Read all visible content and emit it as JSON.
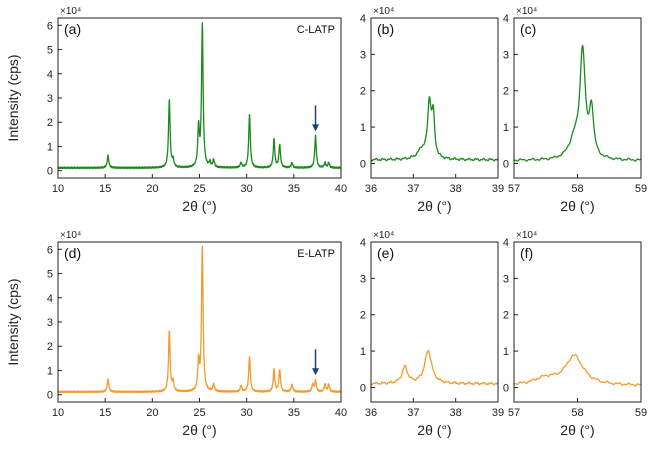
{
  "figure": {
    "ylabel": "Intensity (cps)",
    "xlabel": "2θ (°)"
  },
  "chart_data": [
    {
      "id": "a",
      "type": "line",
      "panel_label": "(a)",
      "annotation": "C-LATP",
      "color": "#1a8a1a",
      "xlim": [
        10,
        40
      ],
      "ylim": [
        -0.3,
        6.3
      ],
      "xticks": [
        10,
        15,
        20,
        25,
        30,
        35,
        40
      ],
      "yticks": [
        0,
        1,
        2,
        3,
        4,
        5,
        6
      ],
      "y_multiplier": "×10⁴",
      "xlabel": "2θ (°)",
      "ylabel": "Intensity (cps)",
      "baseline": 0.12,
      "peaks": [
        [
          15.3,
          0.5,
          0.1
        ],
        [
          21.8,
          2.8,
          0.1
        ],
        [
          22.2,
          0.3,
          0.1
        ],
        [
          24.9,
          1.6,
          0.1
        ],
        [
          25.3,
          5.85,
          0.1
        ],
        [
          26.1,
          0.2,
          0.1
        ],
        [
          26.5,
          0.3,
          0.1
        ],
        [
          29.4,
          0.2,
          0.1
        ],
        [
          30.3,
          2.2,
          0.1
        ],
        [
          32.9,
          1.15,
          0.1
        ],
        [
          33.5,
          0.95,
          0.1
        ],
        [
          34.8,
          0.2,
          0.1
        ],
        [
          37.3,
          1.3,
          0.1
        ],
        [
          38.3,
          0.2,
          0.1
        ],
        [
          38.7,
          0.2,
          0.1
        ]
      ],
      "arrows_x": [
        37.3
      ]
    },
    {
      "id": "b",
      "type": "line",
      "panel_label": "(b)",
      "annotation": "",
      "color": "#1a8a1a",
      "xlim": [
        36,
        39
      ],
      "ylim": [
        -0.4,
        4.0
      ],
      "xticks": [
        36,
        37,
        38,
        39
      ],
      "yticks": [
        0,
        1,
        2,
        3,
        4
      ],
      "y_multiplier": "×10⁴",
      "xlabel": "2θ (°)",
      "ylabel": "",
      "baseline": 0.1,
      "peaks": [
        [
          37.38,
          1.5,
          0.05
        ],
        [
          37.47,
          1.1,
          0.04
        ],
        [
          37.2,
          0.25,
          0.12
        ]
      ],
      "arrows_x": []
    },
    {
      "id": "c",
      "type": "line",
      "panel_label": "(c)",
      "annotation": "",
      "color": "#1a8a1a",
      "xlim": [
        57,
        59
      ],
      "ylim": [
        -0.4,
        4.0
      ],
      "xticks": [
        57,
        58,
        59
      ],
      "yticks": [
        0,
        1,
        2,
        3,
        4
      ],
      "y_multiplier": "×10⁴",
      "xlabel": "2θ (°)",
      "ylabel": "",
      "baseline": 0.08,
      "peaks": [
        [
          58.08,
          2.9,
          0.05
        ],
        [
          58.22,
          1.3,
          0.04
        ],
        [
          57.95,
          0.5,
          0.1
        ]
      ],
      "arrows_x": []
    },
    {
      "id": "d",
      "type": "line",
      "panel_label": "(d)",
      "annotation": "E-LATP",
      "color": "#f39a2b",
      "xlim": [
        10,
        40
      ],
      "ylim": [
        -0.3,
        6.3
      ],
      "xticks": [
        10,
        15,
        20,
        25,
        30,
        35,
        40
      ],
      "yticks": [
        0,
        1,
        2,
        3,
        4,
        5,
        6
      ],
      "y_multiplier": "×10⁴",
      "xlabel": "2θ (°)",
      "ylabel": "Intensity (cps)",
      "baseline": 0.12,
      "peaks": [
        [
          15.3,
          0.5,
          0.1
        ],
        [
          21.8,
          2.5,
          0.1
        ],
        [
          22.2,
          0.4,
          0.1
        ],
        [
          24.9,
          1.2,
          0.1
        ],
        [
          25.3,
          5.9,
          0.1
        ],
        [
          26.5,
          0.3,
          0.1
        ],
        [
          29.4,
          0.25,
          0.1
        ],
        [
          30.3,
          1.45,
          0.1
        ],
        [
          32.9,
          0.9,
          0.1
        ],
        [
          33.5,
          0.9,
          0.1
        ],
        [
          34.8,
          0.3,
          0.1
        ],
        [
          37.0,
          0.3,
          0.1
        ],
        [
          37.3,
          0.45,
          0.1
        ],
        [
          38.3,
          0.3,
          0.1
        ],
        [
          38.7,
          0.3,
          0.1
        ]
      ],
      "arrows_x": [
        37.3
      ]
    },
    {
      "id": "e",
      "type": "line",
      "panel_label": "(e)",
      "annotation": "",
      "color": "#f39a2b",
      "xlim": [
        36,
        39
      ],
      "ylim": [
        -0.4,
        4.0
      ],
      "xticks": [
        36,
        37,
        38,
        39
      ],
      "yticks": [
        0,
        1,
        2,
        3,
        4
      ],
      "y_multiplier": "×10⁴",
      "xlabel": "2θ (°)",
      "ylabel": "",
      "baseline": 0.1,
      "peaks": [
        [
          36.8,
          0.45,
          0.08
        ],
        [
          37.35,
          0.9,
          0.1
        ]
      ],
      "arrows_x": []
    },
    {
      "id": "f",
      "type": "line",
      "panel_label": "(f)",
      "annotation": "",
      "color": "#f39a2b",
      "xlim": [
        57,
        59
      ],
      "ylim": [
        -0.4,
        4.0
      ],
      "xticks": [
        57,
        58,
        59
      ],
      "yticks": [
        0,
        1,
        2,
        3,
        4
      ],
      "y_multiplier": "×10⁴",
      "xlabel": "2θ (°)",
      "ylabel": "",
      "baseline": 0.05,
      "peaks": [
        [
          57.95,
          0.8,
          0.17
        ],
        [
          57.5,
          0.18,
          0.22
        ]
      ],
      "arrows_x": []
    }
  ]
}
